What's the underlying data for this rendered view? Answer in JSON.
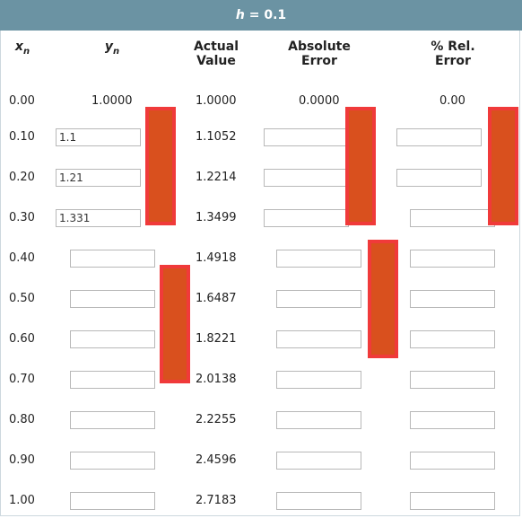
{
  "banner": {
    "h_label": "h",
    "h_value": "= 0.1"
  },
  "headers": {
    "xn": "x",
    "xn_sub": "n",
    "yn": "y",
    "yn_sub": "n",
    "actual_l1": "Actual",
    "actual_l2": "Value",
    "abs_l1": "Absolute",
    "abs_l2": "Error",
    "rel_l1": "% Rel.",
    "rel_l2": "Error"
  },
  "rows": [
    {
      "x": "0.00",
      "y": "1.0000",
      "actual": "1.0000",
      "abs": "0.0000",
      "rel": "0.00"
    },
    {
      "x": "0.10",
      "y": "1.1",
      "actual": "1.1052",
      "abs": "",
      "rel": ""
    },
    {
      "x": "0.20",
      "y": "1.21",
      "actual": "1.2214",
      "abs": "",
      "rel": ""
    },
    {
      "x": "0.30",
      "y": "1.331",
      "actual": "1.3499",
      "abs": "",
      "rel": ""
    },
    {
      "x": "0.40",
      "y": "",
      "actual": "1.4918",
      "abs": "",
      "rel": ""
    },
    {
      "x": "0.50",
      "y": "",
      "actual": "1.6487",
      "abs": "",
      "rel": ""
    },
    {
      "x": "0.60",
      "y": "",
      "actual": "1.8221",
      "abs": "",
      "rel": ""
    },
    {
      "x": "0.70",
      "y": "",
      "actual": "2.0138",
      "abs": "",
      "rel": ""
    },
    {
      "x": "0.80",
      "y": "",
      "actual": "2.2255",
      "abs": "",
      "rel": ""
    },
    {
      "x": "0.90",
      "y": "",
      "actual": "2.4596",
      "abs": "",
      "rel": ""
    },
    {
      "x": "1.00",
      "y": "",
      "actual": "2.7183",
      "abs": "",
      "rel": ""
    }
  ],
  "colors": {
    "banner": "#6b93a3",
    "highlight_fill": "#d9501e",
    "highlight_border": "#f03a3a"
  }
}
